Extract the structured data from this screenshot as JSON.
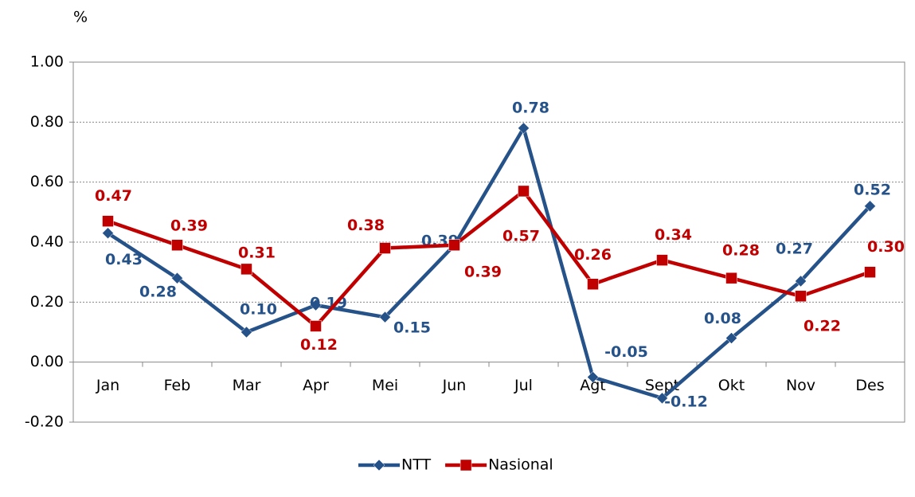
{
  "chart_data": {
    "type": "line",
    "y_unit": "%",
    "categories": [
      "Jan",
      "Feb",
      "Mar",
      "Apr",
      "Mei",
      "Jun",
      "Jul",
      "Agt",
      "Sept",
      "Okt",
      "Nov",
      "Des"
    ],
    "series": [
      {
        "name": "NTT",
        "color": "#26528a",
        "marker": "diamond",
        "values": [
          0.43,
          0.28,
          0.1,
          0.19,
          0.15,
          0.39,
          0.78,
          -0.05,
          -0.12,
          0.08,
          0.27,
          0.52
        ],
        "value_labels": [
          "0.43",
          "0.28",
          "0.10",
          "0.19",
          "0.15",
          "0.39",
          "0.78",
          "-0.05",
          "-0.12",
          "0.08",
          "0.27",
          "0.52"
        ]
      },
      {
        "name": "Nasional",
        "color": "#c00000",
        "marker": "square",
        "values": [
          0.47,
          0.39,
          0.31,
          0.12,
          0.38,
          0.39,
          0.57,
          0.26,
          0.34,
          0.28,
          0.22,
          0.3
        ],
        "value_labels": [
          "0.47",
          "0.39",
          "0.31",
          "0.12",
          "0.38",
          "0.39",
          "0.57",
          "0.26",
          "0.34",
          "0.28",
          "0.22",
          "0.30"
        ]
      }
    ],
    "ylim": [
      -0.2,
      1.0
    ],
    "yticks": [
      {
        "value": -0.2,
        "label": "-0.20"
      },
      {
        "value": 0,
        "label": "0.00"
      },
      {
        "value": 0.2,
        "label": "0.20"
      },
      {
        "value": 0.4,
        "label": "0.40"
      },
      {
        "value": 0.6,
        "label": "0.60"
      },
      {
        "value": 0.8,
        "label": "0.80"
      },
      {
        "value": 1.0,
        "label": "1.00"
      }
    ],
    "grid": true,
    "legend": "bottom"
  }
}
